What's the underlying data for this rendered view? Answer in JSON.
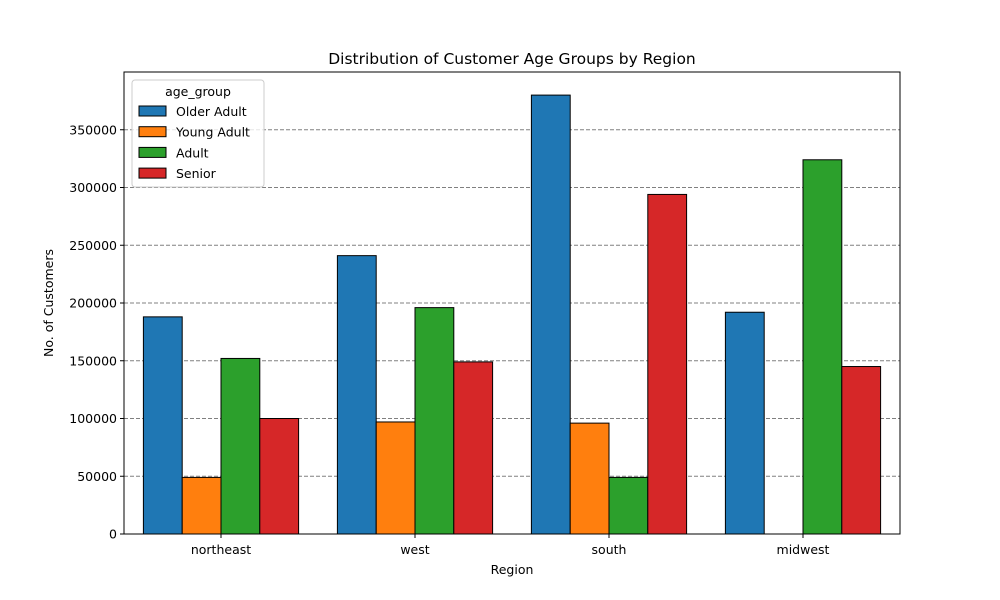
{
  "chart_data": {
    "type": "bar",
    "title": "Distribution of Customer Age Groups by Region",
    "xlabel": "Region",
    "ylabel": "No. of Customers",
    "categories": [
      "northeast",
      "west",
      "south",
      "midwest"
    ],
    "ylim": [
      0,
      400000
    ],
    "yticks": [
      0,
      50000,
      100000,
      150000,
      200000,
      250000,
      300000,
      350000
    ],
    "grid": "y, dashed",
    "legend": {
      "title": "age_group",
      "position": "upper-left"
    },
    "series": [
      {
        "name": "Older Adult",
        "color": "#1f77b4",
        "values": [
          188000,
          241000,
          380000,
          192000
        ]
      },
      {
        "name": "Young Adult",
        "color": "#ff7f0e",
        "values": [
          49000,
          97000,
          96000,
          0
        ]
      },
      {
        "name": "Adult",
        "color": "#2ca02c",
        "values": [
          152000,
          196000,
          49000,
          324000
        ]
      },
      {
        "name": "Senior",
        "color": "#d62728",
        "values": [
          100000,
          149000,
          294000,
          145000
        ]
      }
    ]
  }
}
